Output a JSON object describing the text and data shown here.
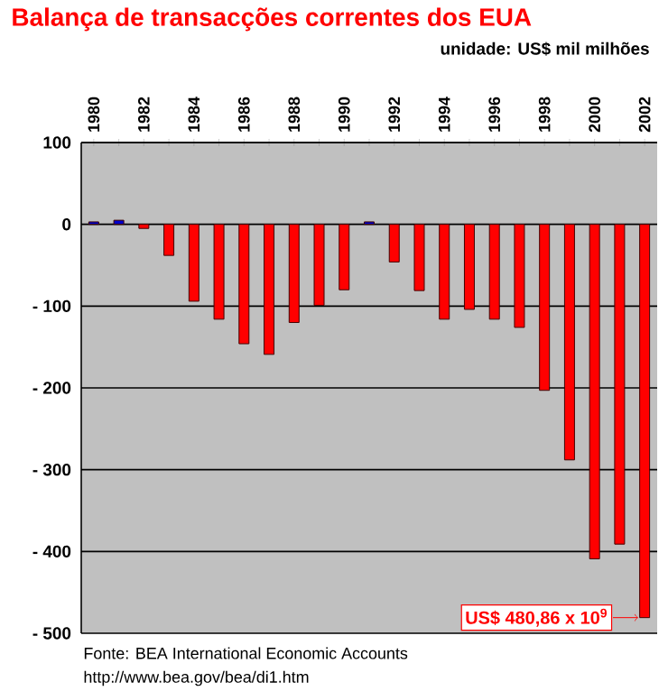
{
  "chart_data": {
    "type": "bar",
    "title": "Balança de transacções correntes dos EUA",
    "subtitle": "unidade: US$ mil milhões",
    "categories": [
      "1980",
      null,
      "1982",
      null,
      "1984",
      null,
      "1986",
      null,
      "1988",
      null,
      "1990",
      null,
      "1992",
      null,
      "1994",
      null,
      "1996",
      null,
      "1998",
      null,
      "2000",
      null,
      "2002"
    ],
    "values": [
      3,
      5,
      -5,
      -38,
      -94,
      -116,
      -146,
      -159,
      -120,
      -99,
      -80,
      3,
      -46,
      -81,
      -116,
      -104,
      -116,
      -126,
      -203,
      -288,
      -409,
      -391,
      -480.86
    ],
    "colors": [
      "#0000cc",
      "#0000cc",
      "#ff0000",
      "#ff0000",
      "#ff0000",
      "#ff0000",
      "#ff0000",
      "#ff0000",
      "#ff0000",
      "#ff0000",
      "#ff0000",
      "#0000cc",
      "#ff0000",
      "#ff0000",
      "#ff0000",
      "#ff0000",
      "#ff0000",
      "#ff0000",
      "#ff0000",
      "#ff0000",
      "#ff0000",
      "#ff0000",
      "#ff0000"
    ],
    "ylim": [
      -500,
      100
    ],
    "yticks": [
      100,
      0,
      {
        "value": -100,
        "label": "- 100"
      },
      {
        "value": -200,
        "label": "- 200"
      },
      {
        "value": -300,
        "label": "- 300"
      },
      {
        "value": -400,
        "label": "- 400"
      },
      {
        "value": -500,
        "label": "- 500"
      }
    ],
    "grid": "y",
    "annotations": [
      {
        "text": "US$ 480,86 x 10$^{9}$",
        "x": "2002",
        "y": -480.86
      },
      "Fonte: BEA International Economic Accounts",
      "http://www.bea.gov/bea/di1.htm"
    ]
  }
}
